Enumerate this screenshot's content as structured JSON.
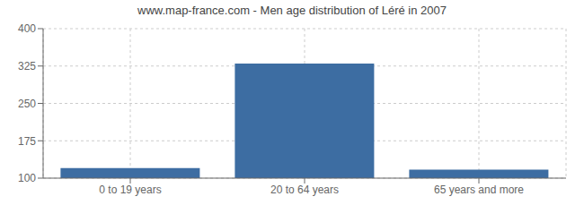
{
  "chart_data": {
    "type": "bar",
    "title": "www.map-france.com - Men age distribution of Léré in 2007",
    "categories": [
      "0 to 19 years",
      "20 to 64 years",
      "65 years and more"
    ],
    "values": [
      120,
      330,
      117
    ],
    "color": "#3d6da2",
    "ylim": [
      100,
      400
    ],
    "yticks": [
      100,
      175,
      250,
      325,
      400
    ],
    "grid": true
  }
}
